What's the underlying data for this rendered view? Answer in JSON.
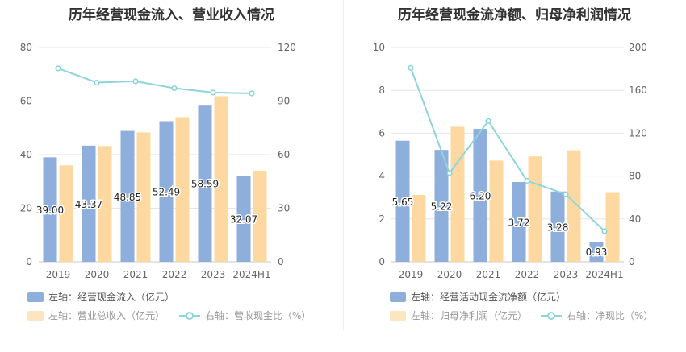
{
  "chart_data": [
    {
      "type": "bar+line",
      "title": "历年经营现金流入、营业收入情况",
      "categories": [
        "2019",
        "2020",
        "2021",
        "2022",
        "2023",
        "2024H1"
      ],
      "series": [
        {
          "name": "左轴：经营现金流入（亿元）",
          "axis": "left",
          "type": "bar",
          "color": "#8eaedc",
          "values": [
            39.0,
            43.37,
            48.85,
            52.49,
            58.59,
            32.07
          ],
          "labels": [
            "39.00",
            "43.37",
            "48.85",
            "52.49",
            "58.59",
            "32.07"
          ]
        },
        {
          "name": "左轴：营业总收入（亿元）",
          "axis": "left",
          "type": "bar",
          "color": "#fdd9a1",
          "values": [
            36.0,
            43.2,
            48.3,
            54.0,
            61.8,
            34.0
          ]
        },
        {
          "name": "右轴：营收现金比（%）",
          "axis": "right",
          "type": "line",
          "color": "#8fd4dc",
          "values": [
            108.3,
            100.4,
            101.1,
            97.2,
            94.8,
            94.3
          ]
        }
      ],
      "left_axis": {
        "min": 0,
        "max": 80,
        "ticks": [
          0,
          20,
          40,
          60,
          80
        ],
        "tick_labels": [
          "0",
          "20",
          "40",
          "60",
          "80"
        ]
      },
      "right_axis": {
        "min": 0,
        "max": 120,
        "ticks": [
          0,
          30,
          60,
          90,
          120
        ],
        "tick_labels": [
          "0",
          "30",
          "60",
          "90",
          "120"
        ]
      },
      "legend": [
        {
          "label": "左轴：经营现金流入（亿元）",
          "kind": "bar",
          "color": "#8eaedc"
        },
        {
          "label": "左轴：营业总收入（亿元）",
          "kind": "bar",
          "color": "#fdd9a1"
        },
        {
          "label": "右轴：营收现金比（%）",
          "kind": "line",
          "color": "#8fd4dc"
        }
      ]
    },
    {
      "type": "bar+line",
      "title": "历年经营现金流净额、归母净利润情况",
      "categories": [
        "2019",
        "2020",
        "2021",
        "2022",
        "2023",
        "2024H1"
      ],
      "series": [
        {
          "name": "左轴：经营活动现金流净额（亿元）",
          "axis": "left",
          "type": "bar",
          "color": "#8eaedc",
          "values": [
            5.65,
            5.22,
            6.2,
            3.72,
            3.28,
            0.93
          ],
          "labels": [
            "5.65",
            "5.22",
            "6.20",
            "3.72",
            "3.28",
            "0.93"
          ]
        },
        {
          "name": "左轴：归母净利润（亿元）",
          "axis": "left",
          "type": "bar",
          "color": "#fdd9a1",
          "values": [
            3.12,
            6.3,
            4.72,
            4.92,
            5.2,
            3.25
          ]
        },
        {
          "name": "右轴：净现比（%）",
          "axis": "right",
          "type": "line",
          "color": "#8fd4dc",
          "values": [
            181,
            82.8,
            131.4,
            75.6,
            63.1,
            28.6
          ]
        }
      ],
      "left_axis": {
        "min": 0,
        "max": 10,
        "ticks": [
          0,
          2,
          4,
          6,
          8,
          10
        ],
        "tick_labels": [
          "0",
          "2",
          "4",
          "6",
          "8",
          "10"
        ]
      },
      "right_axis": {
        "min": 0,
        "max": 200,
        "ticks": [
          0,
          40,
          80,
          120,
          160,
          200
        ],
        "tick_labels": [
          "0",
          "40",
          "80",
          "120",
          "160",
          "200"
        ]
      },
      "legend": [
        {
          "label": "左轴：经营活动现金流净额（亿元）",
          "kind": "bar",
          "color": "#8eaedc"
        },
        {
          "label": "左轴：归母净利润（亿元）",
          "kind": "bar",
          "color": "#fdd9a1"
        },
        {
          "label": "右轴：净现比（%）",
          "kind": "line",
          "color": "#8fd4dc"
        }
      ]
    }
  ]
}
